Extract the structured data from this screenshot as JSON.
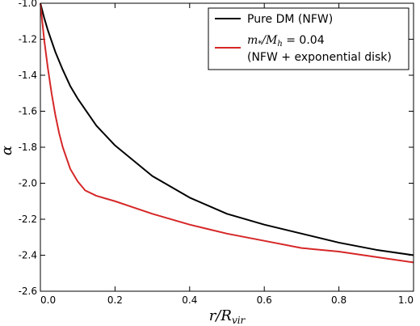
{
  "chart_data": {
    "type": "line",
    "xlabel": "r/R",
    "xlabel_sub": "vir",
    "ylabel": "α",
    "xlim": [
      0.0,
      1.0
    ],
    "ylim": [
      -2.6,
      -1.0
    ],
    "x_ticks": [
      0.0,
      0.2,
      0.4,
      0.6,
      0.8,
      1.0
    ],
    "x_tick_labels": [
      "0.0",
      "0.2",
      "0.4",
      "0.6",
      "0.8",
      "1.0"
    ],
    "y_ticks": [
      -1.0,
      -1.2,
      -1.4,
      -1.6,
      -1.8,
      -2.0,
      -2.2,
      -2.4,
      -2.6
    ],
    "y_tick_labels": [
      "-1.0",
      "-1.2",
      "-1.4",
      "-1.6",
      "-1.8",
      "-2.0",
      "-2.2",
      "-2.4",
      "-2.6"
    ],
    "grid": false,
    "legend_position": "top-right",
    "legend": {
      "entry1": "Pure DM (NFW)",
      "entry2_math_m": "m",
      "entry2_math_m_sub": "*",
      "entry2_math_slash": "/",
      "entry2_math_M": "M",
      "entry2_math_M_sub": "h",
      "entry2_value": " = 0.04",
      "entry2_line2": "(NFW + exponential disk)"
    },
    "series": [
      {
        "color": "#000000",
        "x": [
          0.0,
          0.01,
          0.02,
          0.04,
          0.06,
          0.08,
          0.1,
          0.15,
          0.2,
          0.3,
          0.4,
          0.5,
          0.6,
          0.7,
          0.8,
          0.9,
          1.0
        ],
        "y": [
          -1.0,
          -1.08,
          -1.15,
          -1.27,
          -1.37,
          -1.46,
          -1.53,
          -1.68,
          -1.79,
          -1.96,
          -2.08,
          -2.17,
          -2.23,
          -2.28,
          -2.33,
          -2.37,
          -2.4
        ]
      },
      {
        "color": "#d62728",
        "x": [
          0.0,
          0.005,
          0.01,
          0.02,
          0.03,
          0.04,
          0.05,
          0.06,
          0.08,
          0.1,
          0.12,
          0.15,
          0.2,
          0.3,
          0.4,
          0.5,
          0.6,
          0.7,
          0.8,
          0.9,
          1.0
        ],
        "y": [
          -1.0,
          -1.1,
          -1.2,
          -1.36,
          -1.5,
          -1.62,
          -1.72,
          -1.8,
          -1.92,
          -1.99,
          -2.04,
          -2.07,
          -2.1,
          -2.17,
          -2.23,
          -2.28,
          -2.32,
          -2.36,
          -2.38,
          -2.41,
          -2.44
        ]
      }
    ]
  }
}
